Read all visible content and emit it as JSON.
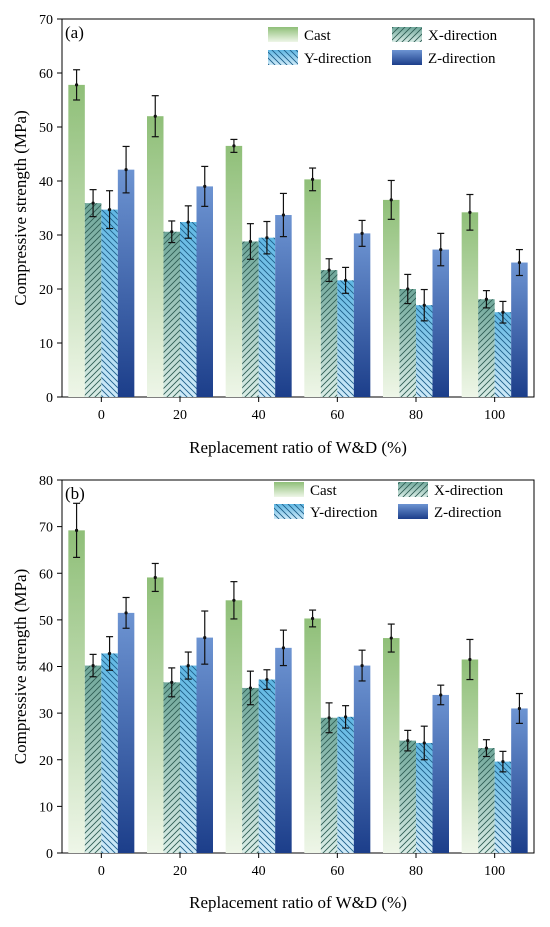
{
  "chart_data": [
    {
      "type": "bar",
      "panel_label": "(a)",
      "xlabel": "Replacement ratio of W&D (%)",
      "ylabel": "Compressive strength (MPa)",
      "ylim": [
        0,
        70
      ],
      "yticks": [
        0,
        10,
        20,
        30,
        40,
        50,
        60,
        70
      ],
      "categories": [
        "0",
        "20",
        "40",
        "60",
        "80",
        "100"
      ],
      "legend": "top-right",
      "grid": false,
      "series": [
        {
          "name": "Cast",
          "values": [
            57.8,
            52.0,
            46.5,
            40.3,
            36.5,
            34.2
          ],
          "errors": [
            2.8,
            3.8,
            1.2,
            2.1,
            3.6,
            3.3
          ]
        },
        {
          "name": "X-direction",
          "values": [
            35.9,
            30.6,
            28.8,
            23.5,
            20.0,
            18.1
          ],
          "errors": [
            2.5,
            2.0,
            3.3,
            2.1,
            2.7,
            1.6
          ]
        },
        {
          "name": "Y-direction",
          "values": [
            34.7,
            32.4,
            29.5,
            21.6,
            17.0,
            15.7
          ],
          "errors": [
            3.5,
            3.0,
            3.0,
            2.4,
            2.9,
            2.0
          ]
        },
        {
          "name": "Z-direction",
          "values": [
            42.1,
            39.0,
            33.7,
            30.3,
            27.3,
            24.9
          ],
          "errors": [
            4.3,
            3.7,
            4.0,
            2.4,
            3.0,
            2.4
          ]
        }
      ]
    },
    {
      "type": "bar",
      "panel_label": "(b)",
      "xlabel": "Replacement ratio of W&D (%)",
      "ylabel": "Compressive strength (MPa)",
      "ylim": [
        0,
        80
      ],
      "yticks": [
        0,
        10,
        20,
        30,
        40,
        50,
        60,
        70,
        80
      ],
      "categories": [
        "0",
        "20",
        "40",
        "60",
        "80",
        "100"
      ],
      "legend": "top-right",
      "grid": false,
      "series": [
        {
          "name": "Cast",
          "values": [
            69.2,
            59.1,
            54.2,
            50.3,
            46.1,
            41.5
          ],
          "errors": [
            5.8,
            3.0,
            4.0,
            1.8,
            3.0,
            4.3
          ]
        },
        {
          "name": "X-direction",
          "values": [
            40.2,
            36.6,
            35.4,
            29.0,
            24.1,
            22.5
          ],
          "errors": [
            2.4,
            3.1,
            3.6,
            3.2,
            2.2,
            1.8
          ]
        },
        {
          "name": "Y-direction",
          "values": [
            42.8,
            40.2,
            37.2,
            29.2,
            23.6,
            19.6
          ],
          "errors": [
            3.6,
            2.9,
            2.1,
            2.4,
            3.6,
            2.2
          ]
        },
        {
          "name": "Z-direction",
          "values": [
            51.5,
            46.2,
            44.0,
            40.2,
            33.9,
            31.0
          ],
          "errors": [
            3.3,
            5.7,
            3.8,
            3.3,
            2.1,
            3.2
          ]
        }
      ]
    }
  ]
}
